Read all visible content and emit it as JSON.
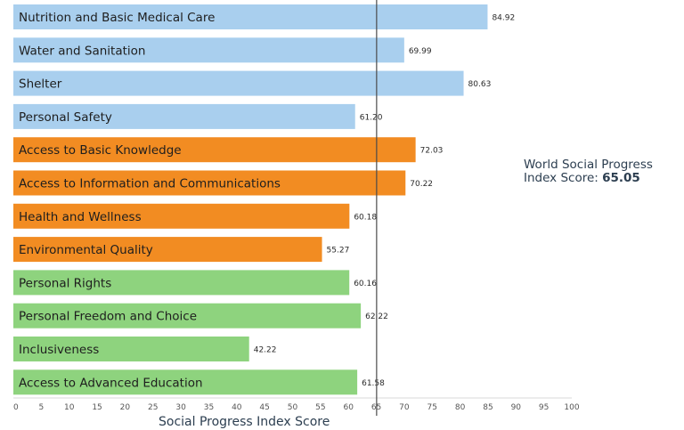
{
  "chart_data": {
    "type": "bar",
    "orientation": "horizontal",
    "xlabel": "Social Progress Index Score",
    "xlim": [
      0,
      100
    ],
    "xticks": [
      0,
      5,
      10,
      15,
      20,
      25,
      30,
      35,
      40,
      45,
      50,
      55,
      60,
      65,
      70,
      75,
      80,
      85,
      90,
      95,
      100
    ],
    "categories": [
      "Nutrition and Basic Medical Care",
      "Water and Sanitation",
      "Shelter",
      "Personal Safety",
      "Access to Basic Knowledge",
      "Access to Information and Communications",
      "Health and Wellness",
      "Environmental Quality",
      "Personal Rights",
      "Personal Freedom and Choice",
      "Inclusiveness",
      "Access to Advanced Education"
    ],
    "values": [
      84.92,
      69.99,
      80.63,
      61.2,
      72.03,
      70.22,
      60.18,
      55.27,
      60.16,
      62.22,
      42.22,
      61.58
    ],
    "value_labels": [
      "84.92",
      "69.99",
      "80.63",
      "61.20",
      "72.03",
      "70.22",
      "60.18",
      "55.27",
      "60.16",
      "62.22",
      "42.22",
      "61.58"
    ],
    "groups": [
      0,
      0,
      0,
      0,
      1,
      1,
      1,
      1,
      2,
      2,
      2,
      2
    ],
    "group_colors": [
      "#a9cfee",
      "#f28c22",
      "#8ed37e"
    ],
    "reference_line": {
      "value": 65.05,
      "label_line1": "World Social Progress",
      "label_line2_prefix": "Index Score: ",
      "label_value": "65.05",
      "color": "#4a4a4a"
    }
  }
}
